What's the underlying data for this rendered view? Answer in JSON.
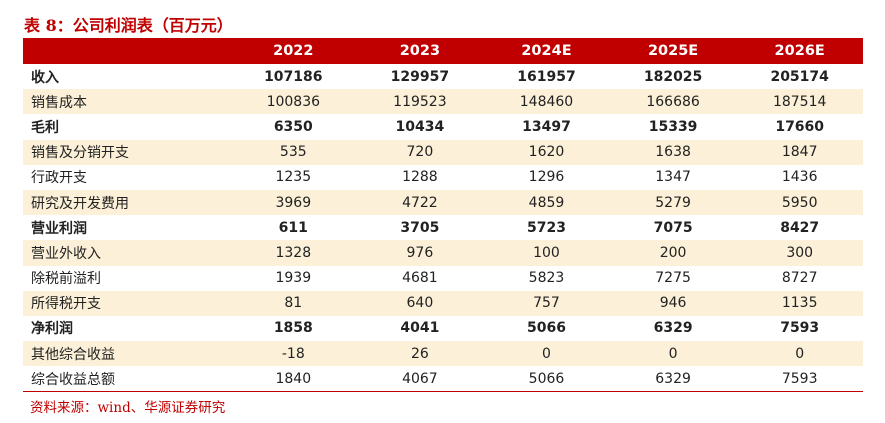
{
  "title": "表 8：公司利润表（百万元）",
  "columns": [
    "",
    "2022",
    "2023",
    "2024E",
    "2025E",
    "2026E"
  ],
  "rows": [
    {
      "label": "收入",
      "values": [
        "107186",
        "129957",
        "161957",
        "182025",
        "205174"
      ],
      "bold": true,
      "shade": false
    },
    {
      "label": "销售成本",
      "values": [
        "100836",
        "119523",
        "148460",
        "166686",
        "187514"
      ],
      "bold": false,
      "shade": true
    },
    {
      "label": "毛利",
      "values": [
        "6350",
        "10434",
        "13497",
        "15339",
        "17660"
      ],
      "bold": true,
      "shade": false
    },
    {
      "label": "销售及分销开支",
      "values": [
        "535",
        "720",
        "1620",
        "1638",
        "1847"
      ],
      "bold": false,
      "shade": true
    },
    {
      "label": "行政开支",
      "values": [
        "1235",
        "1288",
        "1296",
        "1347",
        "1436"
      ],
      "bold": false,
      "shade": false
    },
    {
      "label": "研究及开发费用",
      "values": [
        "3969",
        "4722",
        "4859",
        "5279",
        "5950"
      ],
      "bold": false,
      "shade": true
    },
    {
      "label": "营业利润",
      "values": [
        "611",
        "3705",
        "5723",
        "7075",
        "8427"
      ],
      "bold": true,
      "shade": false
    },
    {
      "label": "营业外收入",
      "values": [
        "1328",
        "976",
        "100",
        "200",
        "300"
      ],
      "bold": false,
      "shade": true
    },
    {
      "label": "除税前溢利",
      "values": [
        "1939",
        "4681",
        "5823",
        "7275",
        "8727"
      ],
      "bold": false,
      "shade": false
    },
    {
      "label": "所得税开支",
      "values": [
        "81",
        "640",
        "757",
        "946",
        "1135"
      ],
      "bold": false,
      "shade": true
    },
    {
      "label": "净利润",
      "values": [
        "1858",
        "4041",
        "5066",
        "6329",
        "7593"
      ],
      "bold": true,
      "shade": false
    },
    {
      "label": "其他综合收益",
      "values": [
        "-18",
        "26",
        "0",
        "0",
        "0"
      ],
      "bold": false,
      "shade": true
    },
    {
      "label": "综合收益总额",
      "values": [
        "1840",
        "4067",
        "5066",
        "6329",
        "7593"
      ],
      "bold": false,
      "shade": false
    }
  ],
  "source": "资料来源：wind、华源证券研究",
  "colors": {
    "accent": "#C00000",
    "shade": "#FCF1D8"
  }
}
